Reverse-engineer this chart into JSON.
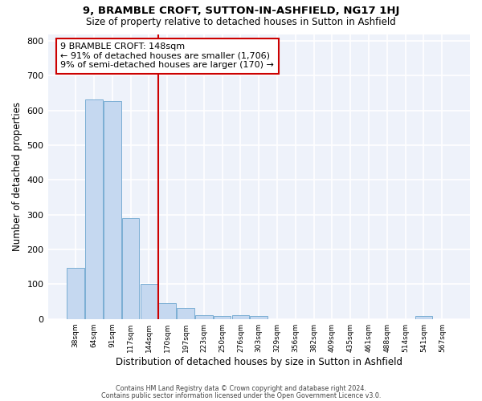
{
  "title1": "9, BRAMBLE CROFT, SUTTON-IN-ASHFIELD, NG17 1HJ",
  "title2": "Size of property relative to detached houses in Sutton in Ashfield",
  "xlabel": "Distribution of detached houses by size in Sutton in Ashfield",
  "ylabel": "Number of detached properties",
  "bar_labels": [
    "38sqm",
    "64sqm",
    "91sqm",
    "117sqm",
    "144sqm",
    "170sqm",
    "197sqm",
    "223sqm",
    "250sqm",
    "276sqm",
    "303sqm",
    "329sqm",
    "356sqm",
    "382sqm",
    "409sqm",
    "435sqm",
    "461sqm",
    "488sqm",
    "514sqm",
    "541sqm",
    "567sqm"
  ],
  "bar_values": [
    148,
    632,
    627,
    290,
    100,
    45,
    32,
    10,
    8,
    10,
    8,
    0,
    0,
    0,
    0,
    0,
    0,
    0,
    0,
    8,
    0
  ],
  "bar_color": "#c5d8f0",
  "bar_edgecolor": "#7baed4",
  "fig_background_color": "#ffffff",
  "ax_background_color": "#eef2fa",
  "grid_color": "#ffffff",
  "annotation_box_text": "9 BRAMBLE CROFT: 148sqm\n← 91% of detached houses are smaller (1,706)\n9% of semi-detached houses are larger (170) →",
  "annotation_box_color": "#ffffff",
  "annotation_box_edgecolor": "#cc0000",
  "vline_color": "#cc0000",
  "vline_x": 4.5,
  "ylim": [
    0,
    820
  ],
  "yticks": [
    0,
    100,
    200,
    300,
    400,
    500,
    600,
    700,
    800
  ],
  "footer_text1": "Contains HM Land Registry data © Crown copyright and database right 2024.",
  "footer_text2": "Contains public sector information licensed under the Open Government Licence v3.0."
}
